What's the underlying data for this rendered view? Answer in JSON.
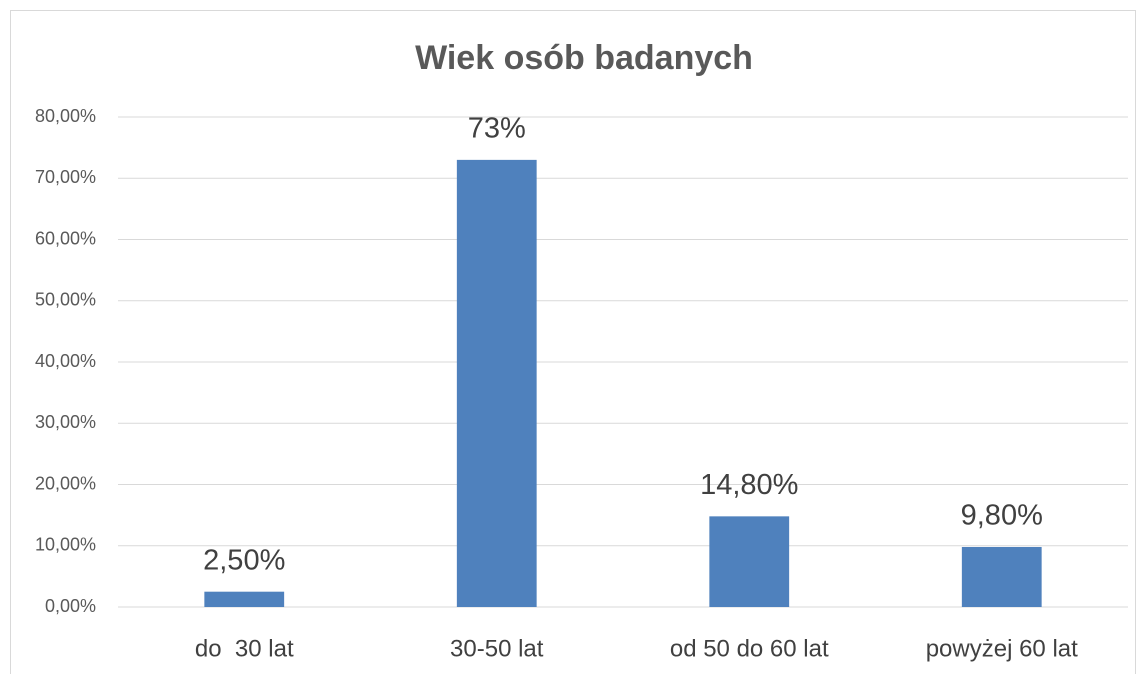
{
  "chart_data": {
    "type": "bar",
    "title": "Wiek osób badanych",
    "categories": [
      "do  30 lat",
      "30-50 lat",
      "od 50 do 60 lat",
      "powyżej 60 lat"
    ],
    "values": [
      2.5,
      73,
      14.8,
      9.8
    ],
    "value_labels": [
      "2,50%",
      "73%",
      "14,80%",
      "9,80%"
    ],
    "color": "#4f81bd",
    "ylim": [
      0,
      80
    ],
    "yticks": [
      {
        "value": 0,
        "label": "0,00%"
      },
      {
        "value": 10,
        "label": "10,00%"
      },
      {
        "value": 20,
        "label": "20,00%"
      },
      {
        "value": 30,
        "label": "30,00%"
      },
      {
        "value": 40,
        "label": "40,00%"
      },
      {
        "value": 50,
        "label": "50,00%"
      },
      {
        "value": 60,
        "label": "60,00%"
      },
      {
        "value": 70,
        "label": "70,00%"
      },
      {
        "value": 80,
        "label": "80,00%"
      }
    ],
    "grid": true
  }
}
